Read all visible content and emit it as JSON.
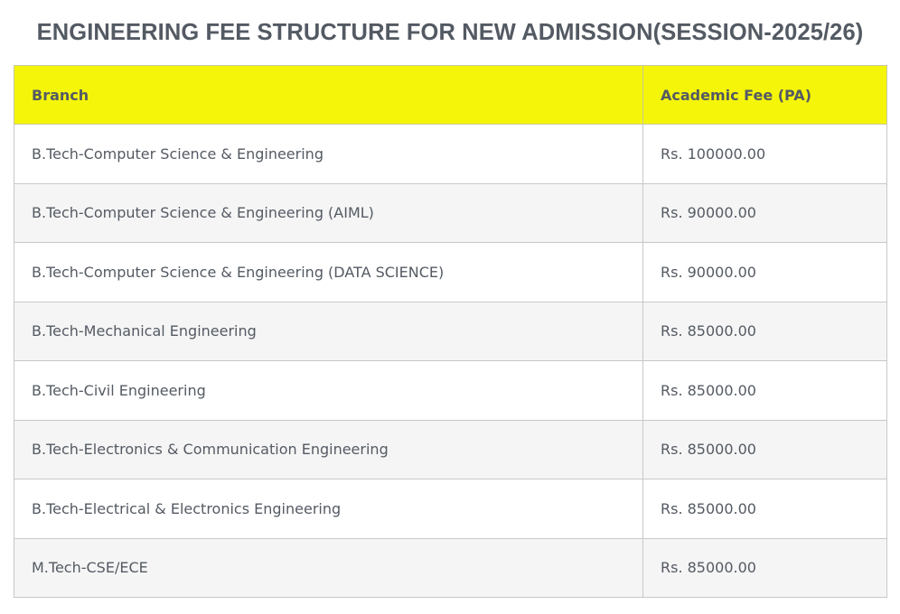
{
  "title": "ENGINEERING FEE STRUCTURE FOR NEW ADMISSION(SESSION-2025/26)",
  "table": {
    "headers": [
      "Branch",
      "Academic Fee (PA)"
    ],
    "rows": [
      [
        "B.Tech-Computer Science & Engineering",
        "Rs. 100000.00"
      ],
      [
        "B.Tech-Computer Science & Engineering (AIML)",
        "Rs. 90000.00"
      ],
      [
        "B.Tech-Computer Science & Engineering (DATA SCIENCE)",
        "Rs. 90000.00"
      ],
      [
        "B.Tech-Mechanical Engineering",
        "Rs. 85000.00"
      ],
      [
        "B.Tech-Civil Engineering",
        "Rs. 85000.00"
      ],
      [
        "B.Tech-Electronics & Communication Engineering",
        "Rs. 85000.00"
      ],
      [
        "B.Tech-Electrical & Electronics Engineering",
        "Rs. 85000.00"
      ],
      [
        "M.Tech-CSE/ECE",
        "Rs. 85000.00"
      ]
    ]
  },
  "colors": {
    "header_bg": "#f5f50a",
    "text": "#545a63",
    "alt_row": "#f5f5f5"
  }
}
